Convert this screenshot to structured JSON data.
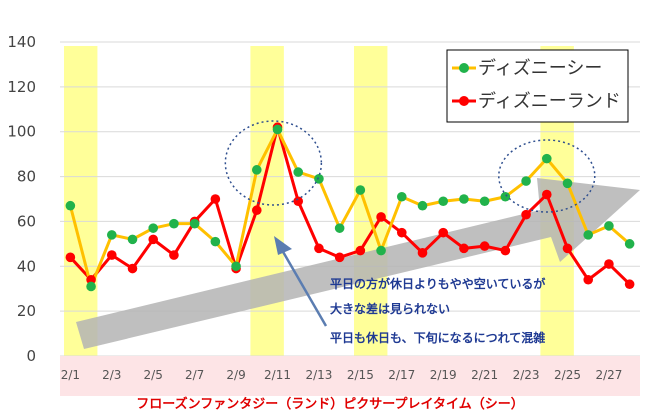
{
  "chart_data": {
    "type": "line",
    "title": "フローズンファンタジー（ランド）ピクサープレイタイム（シー）",
    "ylim": [
      0,
      140
    ],
    "y_ticks": [
      0,
      20,
      40,
      60,
      80,
      100,
      120,
      140
    ],
    "x_tick_labels": [
      "2/1",
      "2/3",
      "2/5",
      "2/7",
      "2/9",
      "2/11",
      "2/13",
      "2/15",
      "2/17",
      "2/19",
      "2/21",
      "2/23",
      "2/25",
      "2/27"
    ],
    "days": 28,
    "highlight_ranges": [
      [
        1,
        2
      ],
      [
        10,
        11
      ],
      [
        15,
        16
      ],
      [
        24,
        25
      ]
    ],
    "series": [
      {
        "name": "ディズニーシー",
        "color": "#ffc000",
        "marker_color": "#21b24b",
        "values": [
          67,
          31,
          54,
          52,
          57,
          59,
          59,
          51,
          40,
          83,
          101,
          82,
          79,
          57,
          74,
          47,
          71,
          67,
          69,
          70,
          69,
          71,
          78,
          88,
          77,
          54,
          58,
          50
        ]
      },
      {
        "name": "ディズニーランド",
        "color": "#ff0000",
        "marker_color": "#ff0000",
        "values": [
          44,
          34,
          45,
          39,
          52,
          45,
          60,
          70,
          39,
          65,
          102,
          69,
          48,
          44,
          47,
          62,
          55,
          46,
          55,
          48,
          49,
          47,
          63,
          72,
          48,
          34,
          41,
          32
        ]
      }
    ],
    "annotations": [
      "平日の方が休日よりもやや空いているが",
      "大きな差は見られない",
      "平日も休日も、下旬になるにつれて混雑"
    ],
    "highlight_color": "#ffff99",
    "xaxis_band_color": "#fde4e6",
    "trend_arrow_color": "#b4b4b4",
    "circle_color": "#2f4f8f",
    "pointer_arrow_color": "#5b7db1"
  }
}
